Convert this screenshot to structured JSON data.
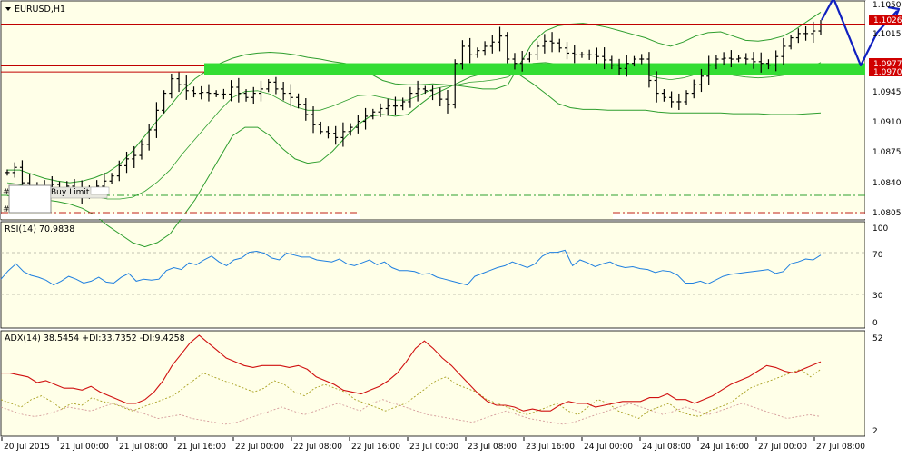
{
  "colors": {
    "background": "#ffffe8",
    "bars": "#000000",
    "bollinger": "#2e9e2e",
    "support_zone": "#33dd33",
    "resistance_line": "#c00000",
    "rsi_line": "#1e7fe0",
    "adx_line": "#d01010",
    "di_plus": "#a8a020",
    "di_minus": "#d49a9a",
    "forecast_arrow": "#1020c0",
    "level_badge": "#d00000",
    "dash_green": "#2ea02e",
    "dash_red": "#c02020"
  },
  "main_panel": {
    "title": "EURUSD,H1",
    "collapse_icon": "triangle-down-icon",
    "price_ticks": [
      "1.1050",
      "1.1015",
      "1.0945",
      "1.0910",
      "1.0875",
      "1.0840",
      "1.0805"
    ],
    "level_badges": [
      "1.1026",
      "1.0977",
      "1.0970"
    ],
    "overlay_labels": [
      "#",
      "#"
    ],
    "overlay_icon_text": "Buy Limit"
  },
  "rsi_panel": {
    "title": "RSI(14) 70.9838",
    "scale": [
      "100",
      "70",
      "30",
      "0"
    ]
  },
  "adx_panel": {
    "title": "ADX(14) 38.5454 +DI:33.7352 -DI:9.4258",
    "scale": [
      "52",
      "2"
    ]
  },
  "time_axis": [
    "20 Jul 2015",
    "21 Jul 00:00",
    "21 Jul 08:00",
    "21 Jul 16:00",
    "22 Jul 00:00",
    "22 Jul 08:00",
    "22 Jul 16:00",
    "23 Jul 00:00",
    "23 Jul 08:00",
    "23 Jul 16:00",
    "24 Jul 00:00",
    "24 Jul 08:00",
    "24 Jul 16:00",
    "27 Jul 00:00",
    "27 Jul 08:00"
  ],
  "chart_data": {
    "type": "line",
    "symbol": "EURUSD",
    "timeframe": "H1",
    "ohlc_close_series": [
      1.0852,
      1.0858,
      1.084,
      1.083,
      1.0836,
      1.0832,
      1.0838,
      1.0833,
      1.0836,
      1.0832,
      1.0826,
      1.0832,
      1.0836,
      1.0842,
      1.0848,
      1.086,
      1.0868,
      1.0872,
      1.0885,
      1.0902,
      1.0925,
      1.0945,
      1.0962,
      1.0955,
      1.0948,
      1.0945,
      1.0946,
      1.0945,
      1.0944,
      1.0944,
      1.0952,
      1.0945,
      1.094,
      1.0945,
      1.095,
      1.0958,
      1.095,
      1.0945,
      1.094,
      1.0932,
      1.092,
      1.0908,
      1.09,
      1.0898,
      1.0893,
      1.09,
      1.0905,
      1.0912,
      1.0918,
      1.0923,
      1.0927,
      1.093,
      1.093,
      1.0935,
      1.0945,
      1.095,
      1.0948,
      1.0943,
      1.0938,
      1.0932,
      1.098,
      1.1,
      1.099,
      1.0995,
      1.1,
      1.1005,
      1.1012,
      1.0985,
      1.098,
      1.0985,
      1.099,
      1.1,
      1.1006,
      1.1004,
      1.0998,
      1.0992,
      1.099,
      1.099,
      1.099,
      1.0988,
      1.0984,
      1.0978,
      1.0974,
      1.098,
      1.0985,
      1.0985,
      1.096,
      1.0945,
      1.094,
      1.0935,
      1.0935,
      1.0945,
      1.0955,
      1.0965,
      1.0978,
      1.0985,
      1.0986,
      1.0985,
      1.0986,
      1.0985,
      1.0982,
      1.098,
      1.0978,
      1.0988,
      1.1,
      1.101,
      1.1015,
      1.1015,
      1.1018,
      1.1026
    ],
    "bollinger_upper": [
      1.0855,
      1.0855,
      1.085,
      1.0845,
      1.0842,
      1.084,
      1.0842,
      1.0846,
      1.0852,
      1.0862,
      1.0877,
      1.0895,
      1.0913,
      1.093,
      1.0948,
      1.0962,
      1.0972,
      1.098,
      1.0986,
      1.099,
      1.0992,
      1.0993,
      1.0992,
      1.099,
      1.0987,
      1.0985,
      1.0982,
      1.098,
      1.0975,
      1.0968,
      1.096,
      1.0956,
      1.0955,
      1.0955,
      1.0956,
      1.0955,
      1.0954,
      1.0952,
      1.095,
      1.095,
      1.0955,
      1.098,
      1.1005,
      1.1018,
      1.1024,
      1.1026,
      1.1027,
      1.1025,
      1.1022,
      1.1018,
      1.1014,
      1.101,
      1.1004,
      1.1,
      1.1005,
      1.1012,
      1.1016,
      1.1017,
      1.1012,
      1.1007,
      1.1006,
      1.1008,
      1.1012,
      1.102,
      1.103,
      1.104
    ],
    "bollinger_lower": [
      1.0825,
      1.0822,
      1.082,
      1.082,
      1.0818,
      1.0815,
      1.081,
      1.0802,
      1.079,
      1.078,
      1.077,
      1.0765,
      1.077,
      1.078,
      1.08,
      1.082,
      1.0845,
      1.087,
      1.0895,
      1.0905,
      1.0905,
      1.0895,
      1.088,
      1.0868,
      1.0863,
      1.0865,
      1.0877,
      1.0893,
      1.0908,
      1.0918,
      1.092,
      1.0918,
      1.092,
      1.0932,
      1.0943,
      1.095,
      1.0957,
      1.0964,
      1.0968,
      1.0972,
      1.0973,
      1.0966,
      1.0956,
      1.0945,
      1.0933,
      1.0928,
      1.0926,
      1.0926,
      1.0925,
      1.0925,
      1.0925,
      1.0925,
      1.0923,
      1.0922,
      1.0922,
      1.0922,
      1.0922,
      1.0922,
      1.0921,
      1.0921,
      1.0921,
      1.092,
      1.092,
      1.092,
      1.0921,
      1.0922
    ],
    "bollinger_mid": [
      1.084,
      1.0838,
      1.0835,
      1.0832,
      1.083,
      1.0828,
      1.0826,
      1.0824,
      1.0821,
      1.0821,
      1.0823,
      1.083,
      1.0841,
      1.0855,
      1.0874,
      1.0891,
      1.0908,
      1.0925,
      1.094,
      1.0947,
      1.0948,
      1.0944,
      1.0936,
      1.0929,
      1.0925,
      1.0925,
      1.093,
      1.0936,
      1.0942,
      1.0943,
      1.094,
      1.0937,
      1.0937,
      1.0943,
      1.095,
      1.0953,
      1.0955,
      1.0958,
      1.0959,
      1.0961,
      1.0964,
      1.0973,
      1.098,
      1.0981,
      1.0979,
      1.0977,
      1.0976,
      1.0975,
      1.0973,
      1.0971,
      1.0969,
      1.0967,
      1.0963,
      1.0961,
      1.0963,
      1.0967,
      1.0969,
      1.097,
      1.0966,
      1.0964,
      1.0963,
      1.0964,
      1.0966,
      1.097,
      1.0975,
      1.0981
    ],
    "rsi": [
      46,
      55,
      62,
      54,
      50,
      48,
      45,
      40,
      44,
      49,
      46,
      42,
      44,
      48,
      43,
      42,
      48,
      52,
      44,
      46,
      45,
      46,
      55,
      58,
      56,
      63,
      61,
      66,
      70,
      64,
      60,
      66,
      68,
      74,
      75,
      73,
      68,
      66,
      73,
      71,
      69,
      69,
      66,
      65,
      64,
      67,
      62,
      60,
      63,
      66,
      61,
      64,
      58,
      55,
      55,
      54,
      51,
      52,
      48,
      46,
      44,
      42,
      40,
      49,
      52,
      55,
      58,
      60,
      64,
      61,
      58,
      62,
      70,
      74,
      74,
      76,
      60,
      66,
      63,
      59,
      62,
      64,
      60,
      58,
      59,
      57,
      56,
      53,
      55,
      54,
      50,
      42,
      42,
      44,
      41,
      45,
      49,
      51,
      52,
      53,
      54,
      55,
      56,
      52,
      54,
      62,
      64,
      67,
      66,
      71
    ],
    "adx": [
      32,
      32,
      31,
      30,
      27,
      28,
      26,
      24,
      24,
      23,
      25,
      22,
      20,
      18,
      16,
      16,
      18,
      22,
      28,
      36,
      42,
      48,
      52,
      48,
      44,
      40,
      38,
      36,
      35,
      36,
      36,
      36,
      35,
      36,
      34,
      30,
      28,
      26,
      23,
      22,
      21,
      23,
      25,
      28,
      32,
      38,
      45,
      49,
      45,
      40,
      36,
      31,
      26,
      21,
      17,
      15,
      15,
      14,
      12,
      13,
      12,
      12,
      15,
      17,
      16,
      16,
      14,
      15,
      16,
      17,
      17,
      17,
      19,
      19,
      21,
      18,
      18,
      16,
      18,
      20,
      23,
      26,
      28,
      30,
      33,
      36,
      35,
      33,
      32,
      34,
      36,
      38
    ],
    "di_plus": [
      18,
      16,
      14,
      18,
      20,
      17,
      13,
      16,
      15,
      19,
      17,
      16,
      14,
      12,
      14,
      16,
      18,
      20,
      24,
      28,
      32,
      30,
      28,
      26,
      24,
      22,
      24,
      28,
      26,
      22,
      20,
      24,
      26,
      24,
      22,
      18,
      16,
      14,
      12,
      14,
      16,
      20,
      24,
      28,
      30,
      26,
      24,
      22,
      18,
      16,
      14,
      12,
      10,
      12,
      14,
      16,
      12,
      10,
      14,
      18,
      16,
      12,
      10,
      8,
      12,
      14,
      16,
      12,
      10,
      9,
      12,
      14,
      16,
      20,
      24,
      26,
      28,
      30,
      32,
      34,
      30,
      34
    ],
    "di_minus": [
      14,
      12,
      10,
      9,
      10,
      12,
      14,
      13,
      12,
      14,
      16,
      14,
      12,
      10,
      8,
      9,
      10,
      8,
      7,
      6,
      5,
      6,
      8,
      10,
      12,
      14,
      12,
      10,
      12,
      14,
      16,
      14,
      12,
      16,
      18,
      16,
      14,
      12,
      10,
      9,
      8,
      7,
      6,
      8,
      10,
      12,
      10,
      8,
      7,
      6,
      5,
      6,
      8,
      10,
      12,
      14,
      16,
      14,
      12,
      10,
      12,
      14,
      12,
      10,
      12,
      14,
      16,
      14,
      12,
      10,
      8,
      9,
      10,
      9
    ],
    "levels": {
      "resistance": 1.1026,
      "support_zone_top": 1.0977,
      "support_zone_bottom": 1.097
    }
  }
}
